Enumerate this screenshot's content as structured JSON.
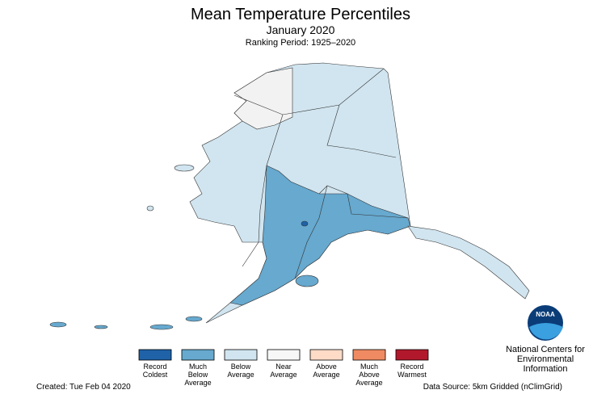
{
  "header": {
    "title": "Mean Temperature Percentiles",
    "subtitle": "January 2020",
    "period": "Ranking Period: 1925–2020"
  },
  "legend": [
    {
      "lines": [
        "Record",
        "Coldest"
      ],
      "color": "#1f62a8"
    },
    {
      "lines": [
        "Much",
        "Below",
        "Average"
      ],
      "color": "#67a9cf"
    },
    {
      "lines": [
        "Below",
        "Average"
      ],
      "color": "#d1e5f0"
    },
    {
      "lines": [
        "Near",
        "Average"
      ],
      "color": "#f7f7f7"
    },
    {
      "lines": [
        "Above",
        "Average"
      ],
      "color": "#fddbc7"
    },
    {
      "lines": [
        "Much",
        "Above",
        "Average"
      ],
      "color": "#ef8a62"
    },
    {
      "lines": [
        "Record",
        "Warmest"
      ],
      "color": "#b2182b"
    }
  ],
  "logo": {
    "text": "NOAA",
    "org": [
      "National Centers for",
      "Environmental",
      "Information"
    ]
  },
  "footer": {
    "created": "Created: Tue Feb 04 2020",
    "source": "Data Source: 5km Gridded (nClimGrid)"
  }
}
